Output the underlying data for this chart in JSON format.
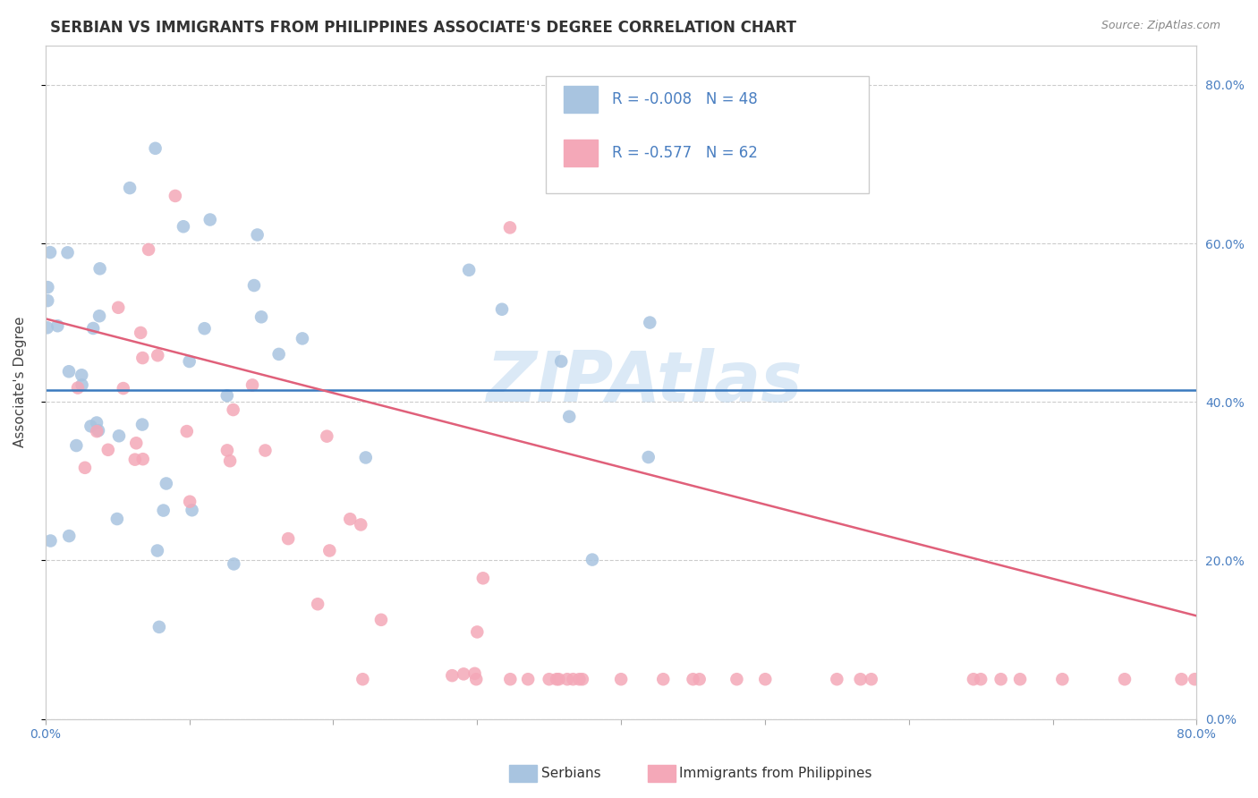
{
  "title": "SERBIAN VS IMMIGRANTS FROM PHILIPPINES ASSOCIATE'S DEGREE CORRELATION CHART",
  "source": "Source: ZipAtlas.com",
  "ylabel": "Associate's Degree",
  "legend_labels": [
    "Serbians",
    "Immigrants from Philippines"
  ],
  "blue_color": "#a8c4e0",
  "pink_color": "#f4a8b8",
  "blue_line_color": "#3a7abf",
  "pink_line_color": "#e0607a",
  "xlim": [
    0.0,
    0.8
  ],
  "ylim": [
    0.0,
    0.85
  ],
  "ytick_vals": [
    0.0,
    0.2,
    0.4,
    0.6,
    0.8
  ],
  "title_fontsize": 12,
  "axis_label_fontsize": 11,
  "tick_fontsize": 10,
  "legend_fontsize": 12,
  "blue_r": -0.008,
  "blue_n": 48,
  "pink_r": -0.577,
  "pink_n": 62,
  "blue_line_y0": 0.415,
  "blue_line_y1": 0.415,
  "pink_line_y0": 0.505,
  "pink_line_y1": 0.13
}
